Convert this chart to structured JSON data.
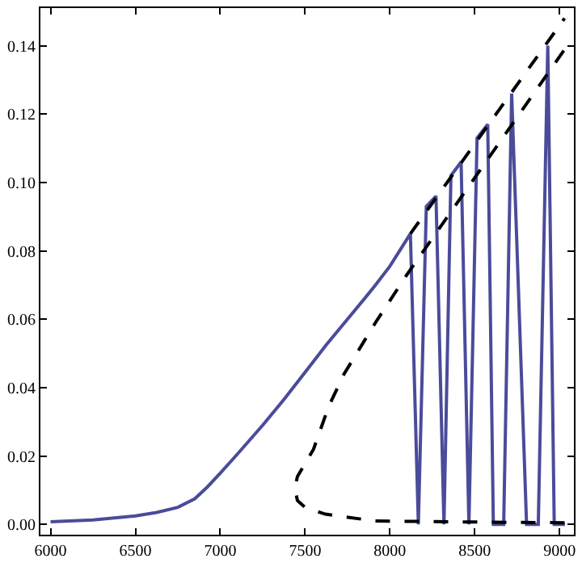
{
  "chart_data": {
    "type": "line",
    "xlim": [
      5940,
      9085
    ],
    "ylim": [
      -0.003,
      0.151
    ],
    "xticks": [
      6000,
      6500,
      7000,
      7500,
      8000,
      8500,
      9000
    ],
    "yticks": [
      {
        "value": 0,
        "label": "0.00"
      },
      {
        "value": 0.02,
        "label": "0.02"
      },
      {
        "value": 0.04,
        "label": "0.04"
      },
      {
        "value": 0.06,
        "label": "0.06"
      },
      {
        "value": 0.08,
        "label": "0.08"
      },
      {
        "value": 0.1,
        "label": "0.10"
      },
      {
        "value": 0.12,
        "label": "0.12"
      },
      {
        "value": 0.14,
        "label": "0.14"
      }
    ],
    "marker": "none",
    "series": [
      {
        "color": "#4b4b9b",
        "line_style": "solid",
        "x": [
          6000,
          6250,
          6500,
          6625,
          6750,
          6850,
          6925,
          7000,
          7100,
          7250,
          7375,
          7500,
          7625,
          7750,
          7850,
          7915,
          8000,
          8121,
          8168,
          8215,
          8272,
          8319,
          8360,
          8420,
          8466,
          8514,
          8577,
          8610,
          8671,
          8718,
          8806,
          8875,
          8931,
          8969,
          9032
        ],
        "values": [
          0.0008,
          0.0013,
          0.0025,
          0.0035,
          0.005,
          0.0075,
          0.011,
          0.015,
          0.0205,
          0.029,
          0.0365,
          0.0445,
          0.0525,
          0.06,
          0.066,
          0.07,
          0.0755,
          0.085,
          0.0,
          0.093,
          0.096,
          0.0,
          0.102,
          0.106,
          0.0,
          0.113,
          0.117,
          0.0,
          0.0,
          0.126,
          0.0,
          0.0,
          0.14,
          0.0,
          0.0
        ]
      },
      {
        "color": "#000000",
        "line_style": "dashed",
        "x": [
          8121,
          9030
        ],
        "values": [
          0.085,
          0.148
        ]
      },
      {
        "color": "#000000",
        "line_style": "dashed",
        "x": [
          9030,
          8500,
          7915,
          7620,
          7500,
          7455,
          7440,
          7455,
          7550,
          7640,
          7730,
          7915,
          8100,
          9040
        ],
        "values": [
          0.0005,
          0.0007,
          0.001,
          0.003,
          0.005,
          0.007,
          0.0106,
          0.014,
          0.022,
          0.0346,
          0.044,
          0.059,
          0.073,
          0.1396
        ]
      }
    ]
  }
}
